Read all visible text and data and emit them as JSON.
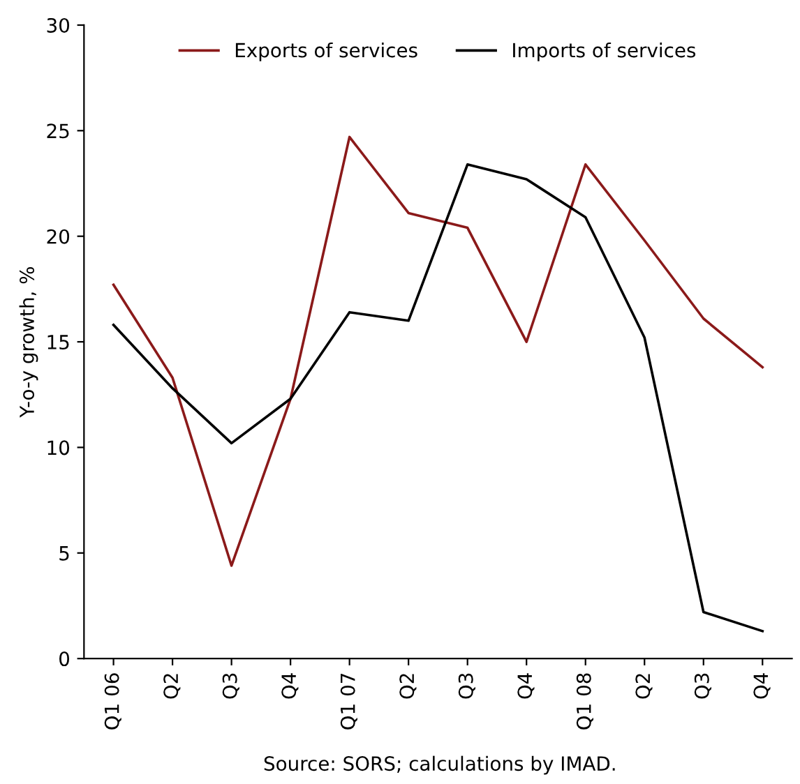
{
  "chart_data": {
    "type": "line",
    "ylabel": "Y-o-y growth, %",
    "categories": [
      "Q1 06",
      "Q2",
      "Q3",
      "Q4",
      "Q1 07",
      "Q2",
      "Q3",
      "Q4",
      "Q1 08",
      "Q2",
      "Q3",
      "Q4"
    ],
    "series": [
      {
        "name": "Exports of services",
        "color": "#8b1a1a",
        "values": [
          17.7,
          13.3,
          4.4,
          12.3,
          24.7,
          21.1,
          20.4,
          15.0,
          23.4,
          19.8,
          16.1,
          13.8
        ]
      },
      {
        "name": "Imports of services",
        "color": "#000000",
        "values": [
          15.8,
          12.8,
          10.2,
          12.3,
          16.4,
          16.0,
          23.4,
          22.7,
          20.9,
          15.2,
          2.2,
          1.3
        ]
      }
    ],
    "ylim": [
      0,
      30
    ],
    "yticks": [
      0,
      5,
      10,
      15,
      20,
      25,
      30
    ],
    "grid": false,
    "legend": "top",
    "marker": "none",
    "line_style": "solid",
    "annotations": [
      "Source: SORS; calculations by IMAD."
    ]
  }
}
